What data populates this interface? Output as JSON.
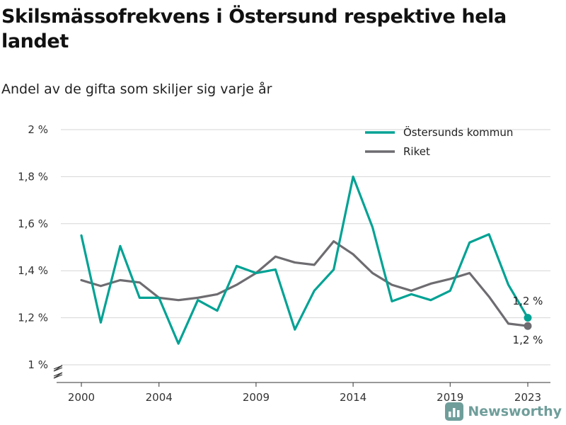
{
  "title": "Skilsmässofrekvens i Östersund respektive hela landet",
  "subtitle": "Andel av de gifta som skiljer sig varje år",
  "brand": "Newsworthy",
  "chart_data": {
    "type": "line",
    "x": [
      2000,
      2001,
      2002,
      2003,
      2004,
      2005,
      2006,
      2007,
      2008,
      2009,
      2010,
      2011,
      2012,
      2013,
      2014,
      2015,
      2016,
      2017,
      2018,
      2019,
      2020,
      2021,
      2022,
      2023
    ],
    "xticks": [
      2000,
      2004,
      2009,
      2014,
      2019,
      2023
    ],
    "xtick_labels": [
      "2000",
      "2004",
      "2009",
      "2014",
      "2019",
      "2023"
    ],
    "yticks": [
      1.0,
      1.2,
      1.4,
      1.6,
      1.8,
      2.0
    ],
    "ytick_labels": [
      "1 %",
      "1,2 %",
      "1,4 %",
      "1,6 %",
      "1,8 %",
      "2 %"
    ],
    "ylim": [
      1.0,
      2.0
    ],
    "axis_break": true,
    "grid": true,
    "legend_position": "top-right",
    "series": [
      {
        "name": "Östersunds kommun",
        "color": "#00a294",
        "values": [
          1.55,
          1.18,
          1.505,
          1.285,
          1.285,
          1.09,
          1.275,
          1.23,
          1.42,
          1.39,
          1.405,
          1.15,
          1.315,
          1.405,
          1.8,
          1.585,
          1.27,
          1.3,
          1.275,
          1.315,
          1.52,
          1.555,
          1.34,
          1.2
        ],
        "end_label": "1,2 %"
      },
      {
        "name": "Riket",
        "color": "#6e6c70",
        "values": [
          1.36,
          1.335,
          1.36,
          1.35,
          1.285,
          1.275,
          1.285,
          1.3,
          1.34,
          1.39,
          1.46,
          1.435,
          1.425,
          1.525,
          1.47,
          1.39,
          1.34,
          1.315,
          1.345,
          1.365,
          1.39,
          1.29,
          1.175,
          1.165
        ],
        "end_label": "1,2 %"
      }
    ]
  }
}
